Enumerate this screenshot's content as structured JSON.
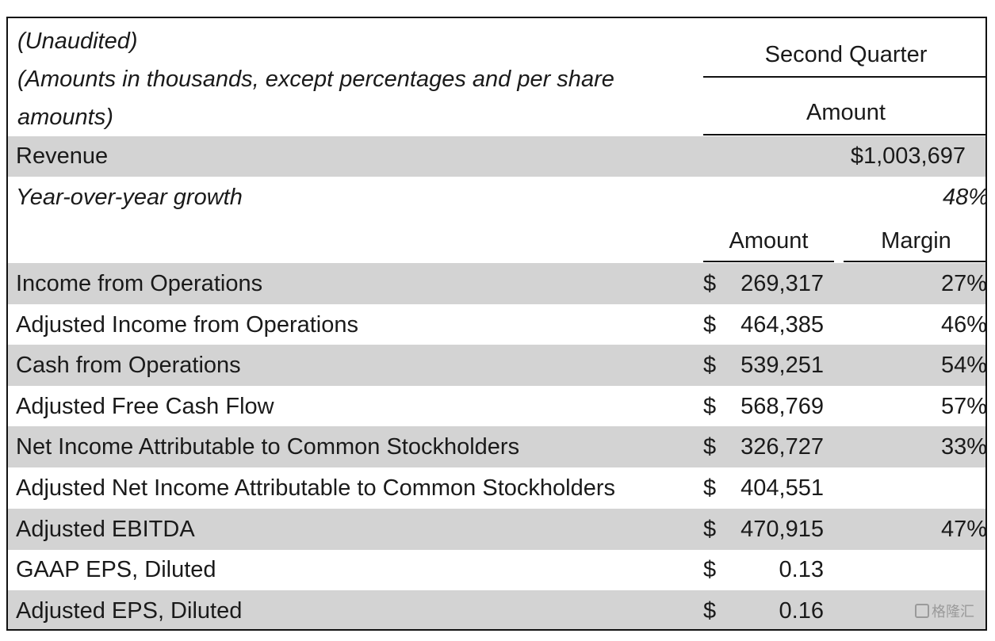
{
  "header": {
    "notes": [
      "(Unaudited)",
      "(Amounts in thousands, except percentages and per share",
      "amounts)"
    ],
    "period": "Second Quarter",
    "amount_label": "Amount"
  },
  "revenue": {
    "label": "Revenue",
    "value": "$1,003,697"
  },
  "growth": {
    "label": "Year-over-year growth",
    "value": "48%"
  },
  "subheader": {
    "amount": "Amount",
    "margin": "Margin"
  },
  "rows": [
    {
      "label": "Income from Operations",
      "currency": "$",
      "amount": "269,317",
      "margin": "27%"
    },
    {
      "label": "Adjusted Income from Operations",
      "currency": "$",
      "amount": "464,385",
      "margin": "46%"
    },
    {
      "label": "Cash from Operations",
      "currency": "$",
      "amount": "539,251",
      "margin": "54%"
    },
    {
      "label": "Adjusted Free Cash Flow",
      "currency": "$",
      "amount": "568,769",
      "margin": "57%"
    },
    {
      "label": "Net Income Attributable to Common Stockholders",
      "currency": "$",
      "amount": "326,727",
      "margin": "33%"
    },
    {
      "label": "Adjusted Net Income Attributable to Common Stockholders",
      "currency": "$",
      "amount": "404,551",
      "margin": ""
    },
    {
      "label": "Adjusted EBITDA",
      "currency": "$",
      "amount": "470,915",
      "margin": "47%"
    },
    {
      "label": "GAAP EPS, Diluted",
      "currency": "$",
      "amount": "0.13",
      "margin": ""
    },
    {
      "label": "Adjusted EPS, Diluted",
      "currency": "$",
      "amount": "0.16",
      "margin": ""
    }
  ],
  "watermark": "格隆汇",
  "colors": {
    "band_gray": "#d3d3d3",
    "border": "#111111"
  }
}
